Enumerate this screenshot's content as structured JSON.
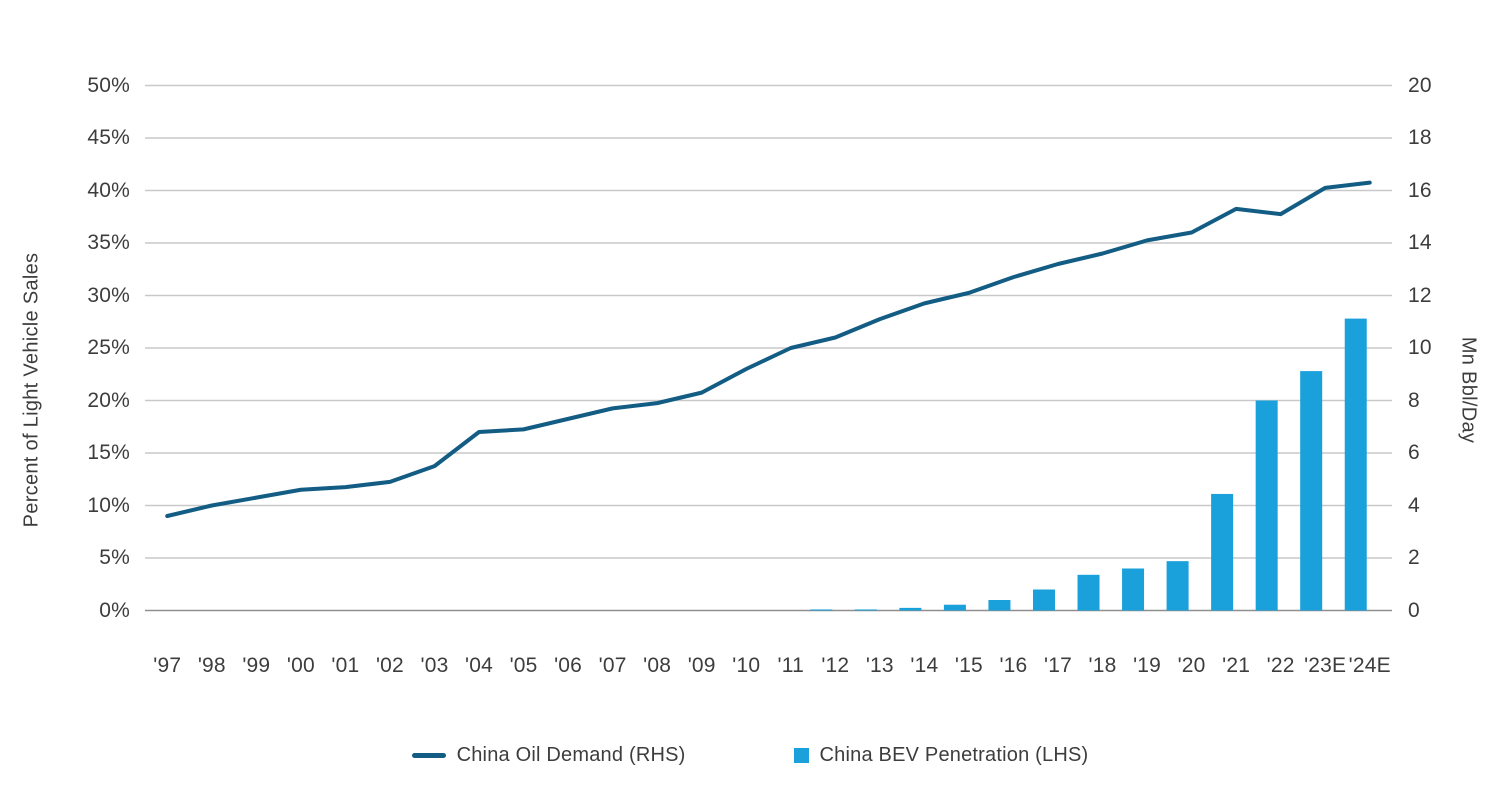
{
  "chart_data": {
    "type": "combo",
    "categories": [
      "'97",
      "'98",
      "'99",
      "'00",
      "'01",
      "'02",
      "'03",
      "'04",
      "'05",
      "'06",
      "'07",
      "'08",
      "'09",
      "'10",
      "'11",
      "'12",
      "'13",
      "'14",
      "'15",
      "'16",
      "'17",
      "'18",
      "'19",
      "'20",
      "'21",
      "'22",
      "'23E",
      "'24E"
    ],
    "series": [
      {
        "name": "China BEV Penetration (LHS)",
        "type": "bar",
        "axis": "left",
        "color": "#1aa0da",
        "values": [
          0,
          0,
          0,
          0,
          0,
          0,
          0,
          0,
          0,
          0,
          0,
          0,
          0,
          0,
          0,
          0.1,
          0.1,
          0.25,
          0.55,
          1.0,
          2.0,
          3.4,
          4.0,
          4.7,
          11.1,
          20.0,
          22.8,
          27.8
        ]
      },
      {
        "name": "China Oil Demand (RHS)",
        "type": "line",
        "axis": "right",
        "color": "#135d85",
        "values": [
          3.6,
          4.0,
          4.3,
          4.6,
          4.7,
          4.9,
          5.5,
          6.8,
          6.9,
          7.3,
          7.7,
          7.9,
          8.3,
          9.2,
          10.0,
          10.4,
          11.1,
          11.7,
          12.1,
          12.7,
          13.2,
          13.6,
          14.1,
          14.4,
          15.3,
          15.1,
          16.1,
          16.3
        ]
      }
    ],
    "left_axis": {
      "title": "Percent of Light Vehicle Sales",
      "min": 0,
      "max": 50,
      "step": 5,
      "ticks": [
        "0%",
        "5%",
        "10%",
        "15%",
        "20%",
        "25%",
        "30%",
        "35%",
        "40%",
        "45%",
        "50%"
      ]
    },
    "right_axis": {
      "title": "Mn Bbl/Day",
      "min": 0,
      "max": 20,
      "step": 2,
      "ticks": [
        "0",
        "2",
        "4",
        "6",
        "8",
        "10",
        "12",
        "14",
        "16",
        "18",
        "20"
      ]
    },
    "grid": true,
    "legend_position": "bottom",
    "colors": {
      "gridline": "#c9c9c9",
      "baseline": "#8f8f8f",
      "text": "#3d3d3d",
      "background": "#ffffff"
    }
  },
  "legend": {
    "items": [
      {
        "label": "China Oil Demand (RHS)",
        "marker": "line"
      },
      {
        "label": "China BEV Penetration (LHS)",
        "marker": "square"
      }
    ]
  }
}
